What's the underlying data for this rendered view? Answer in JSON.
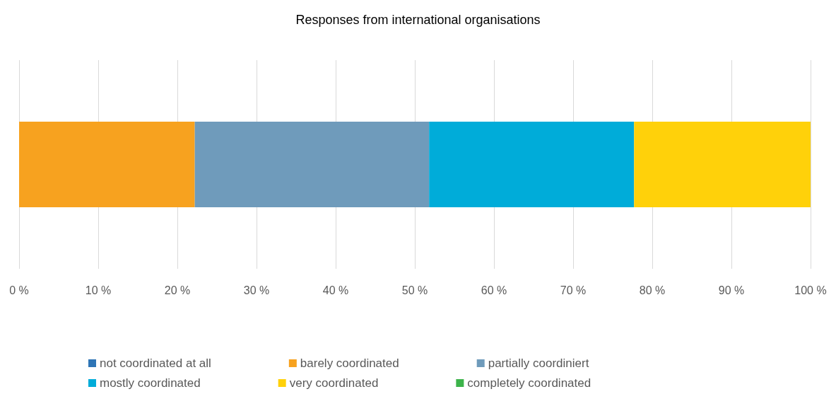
{
  "chart_data": {
    "type": "bar",
    "title": "Responses from international organisations",
    "orientation": "horizontal",
    "stacked": true,
    "categories": [
      null
    ],
    "series": [
      {
        "name": "not coordinated at all",
        "color": "#2e75b6",
        "values": [
          0
        ]
      },
      {
        "name": "barely coordinated",
        "color": "#f7a21f",
        "values": [
          22.2
        ]
      },
      {
        "name": "partially coordiniert",
        "color": "#6f9bbb",
        "values": [
          29.6
        ]
      },
      {
        "name": "mostly coordinated",
        "color": "#00acd9",
        "values": [
          25.9
        ]
      },
      {
        "name": "very coordinated",
        "color": "#ffd10a",
        "values": [
          22.3
        ]
      },
      {
        "name": "completely coordinated",
        "color": "#3cb34a",
        "values": [
          0
        ]
      }
    ],
    "xlim": [
      0,
      100
    ],
    "xticks": [
      {
        "value": 0,
        "label": "0 %"
      },
      {
        "value": 10,
        "label": "10 %"
      },
      {
        "value": 20,
        "label": "20 %"
      },
      {
        "value": 30,
        "label": "30 %"
      },
      {
        "value": 40,
        "label": "40 %"
      },
      {
        "value": 50,
        "label": "50 %"
      },
      {
        "value": 60,
        "label": "60 %"
      },
      {
        "value": 70,
        "label": "70 %"
      },
      {
        "value": 80,
        "label": "80 %"
      },
      {
        "value": 90,
        "label": "90 %"
      },
      {
        "value": 100,
        "label": "100 %"
      }
    ],
    "grid": "x",
    "legend": "bottom"
  }
}
